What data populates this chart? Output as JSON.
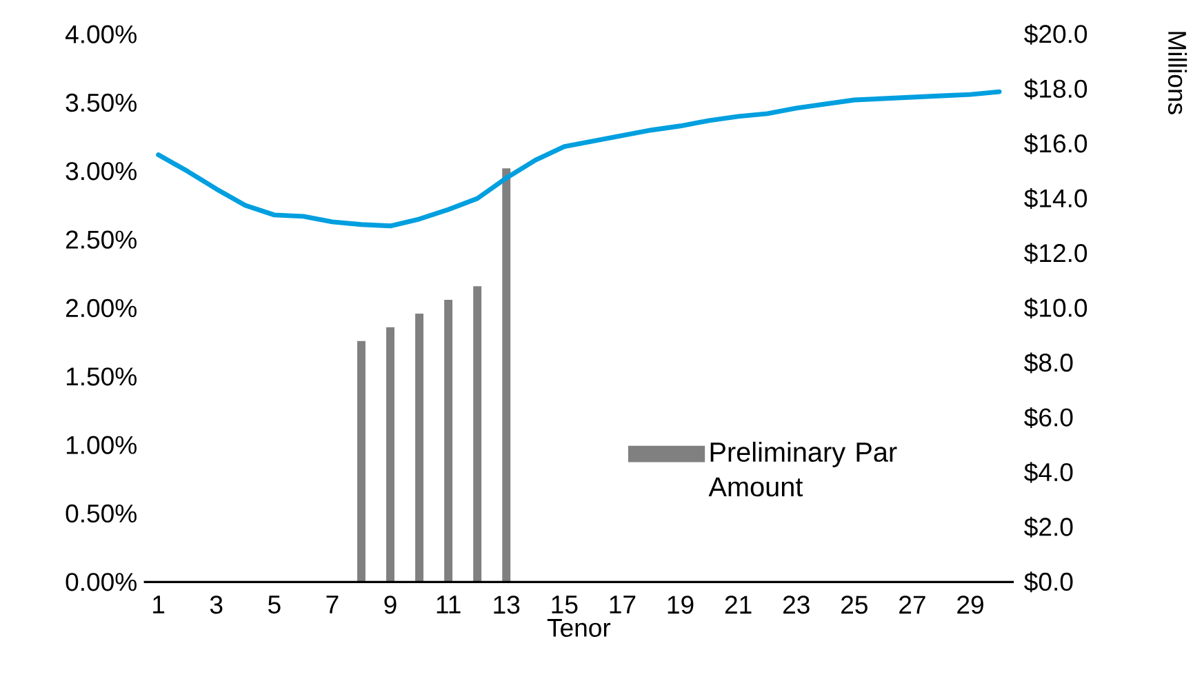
{
  "chart_data": {
    "type": "line",
    "xlabel": "Tenor",
    "y2label": "Millions",
    "x": [
      1,
      2,
      3,
      4,
      5,
      6,
      7,
      8,
      9,
      10,
      11,
      12,
      13,
      14,
      15,
      16,
      17,
      18,
      19,
      20,
      21,
      22,
      23,
      24,
      25,
      26,
      27,
      28,
      29,
      30
    ],
    "xlim": [
      0.5,
      30.5
    ],
    "xticks": [
      1,
      3,
      5,
      7,
      9,
      11,
      13,
      15,
      17,
      19,
      21,
      23,
      25,
      27,
      29
    ],
    "ylim": [
      0,
      4
    ],
    "yticks": [
      {
        "value": 0,
        "label": "0.00%"
      },
      {
        "value": 0.5,
        "label": "0.50%"
      },
      {
        "value": 1,
        "label": "1.00%"
      },
      {
        "value": 1.5,
        "label": "1.50%"
      },
      {
        "value": 2,
        "label": "2.00%"
      },
      {
        "value": 2.5,
        "label": "2.50%"
      },
      {
        "value": 3,
        "label": "3.00%"
      },
      {
        "value": 3.5,
        "label": "3.50%"
      },
      {
        "value": 4,
        "label": "4.00%"
      }
    ],
    "y2lim": [
      0,
      20
    ],
    "y2ticks": [
      {
        "value": 0,
        "label": "$0.0"
      },
      {
        "value": 2,
        "label": "$2.0"
      },
      {
        "value": 4,
        "label": "$4.0"
      },
      {
        "value": 6,
        "label": "$6.0"
      },
      {
        "value": 8,
        "label": "$8.0"
      },
      {
        "value": 10,
        "label": "$10.0"
      },
      {
        "value": 12,
        "label": "$12.0"
      },
      {
        "value": 14,
        "label": "$14.0"
      },
      {
        "value": 16,
        "label": "$16.0"
      },
      {
        "value": 18,
        "label": "$18.0"
      },
      {
        "value": 20,
        "label": "$20.0"
      }
    ],
    "legend": "bottom right",
    "line_style": "solid",
    "marker": "none",
    "series": [
      {
        "type": "bar",
        "axis": "y2",
        "name": "Preliminary Par Amount",
        "color": "#808080",
        "values": [
          null,
          null,
          null,
          null,
          null,
          null,
          null,
          8.8,
          9.3,
          9.8,
          10.3,
          10.8,
          15.1,
          null,
          null,
          null,
          null,
          null,
          null,
          null,
          null,
          null,
          null,
          null,
          null,
          null,
          null,
          null,
          null,
          null
        ]
      },
      {
        "axis": "y",
        "color": "#009fdf",
        "values": [
          3.12,
          3.0,
          2.87,
          2.75,
          2.68,
          2.67,
          2.63,
          2.61,
          2.6,
          2.65,
          2.72,
          2.8,
          2.95,
          3.08,
          3.18,
          3.22,
          3.26,
          3.3,
          3.33,
          3.37,
          3.4,
          3.42,
          3.46,
          3.49,
          3.52,
          3.53,
          3.54,
          3.55,
          3.56,
          3.58
        ]
      }
    ]
  }
}
